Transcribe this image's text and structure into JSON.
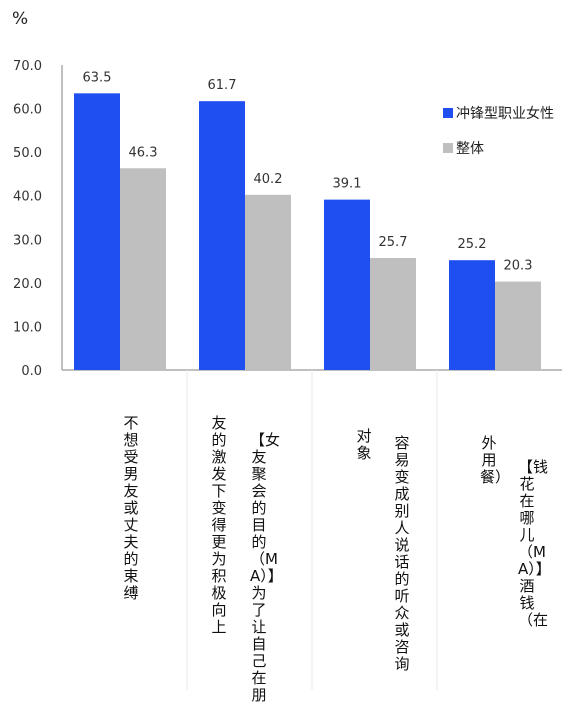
{
  "chart_data": {
    "type": "bar",
    "unit_label": "%",
    "y_ticks": [
      "70.0",
      "60.0",
      "50.0",
      "40.0",
      "30.0",
      "20.0",
      "10.0",
      "0.0"
    ],
    "ylim": [
      0,
      70
    ],
    "legend_position": "right",
    "series": [
      {
        "name": "冲锋型职业女性",
        "color": "#1f4ff0",
        "values": [
          63.5,
          61.7,
          39.1,
          25.2
        ]
      },
      {
        "name": "整体",
        "color": "#bfbfbf",
        "values": [
          46.3,
          40.2,
          25.7,
          20.3
        ]
      }
    ],
    "categories": [
      {
        "columns": [
          "不想受男友或丈夫的束缚"
        ]
      },
      {
        "columns": [
          "友的激发下变得更为积极向上",
          "【女友聚会的目的（MA）】为了让自己在朋"
        ]
      },
      {
        "columns": [
          "对象",
          "容易变成别人说话的听众或咨询"
        ]
      },
      {
        "columns": [
          "外用餐）",
          "【钱花在哪儿（MA）】酒钱（在"
        ]
      }
    ]
  }
}
